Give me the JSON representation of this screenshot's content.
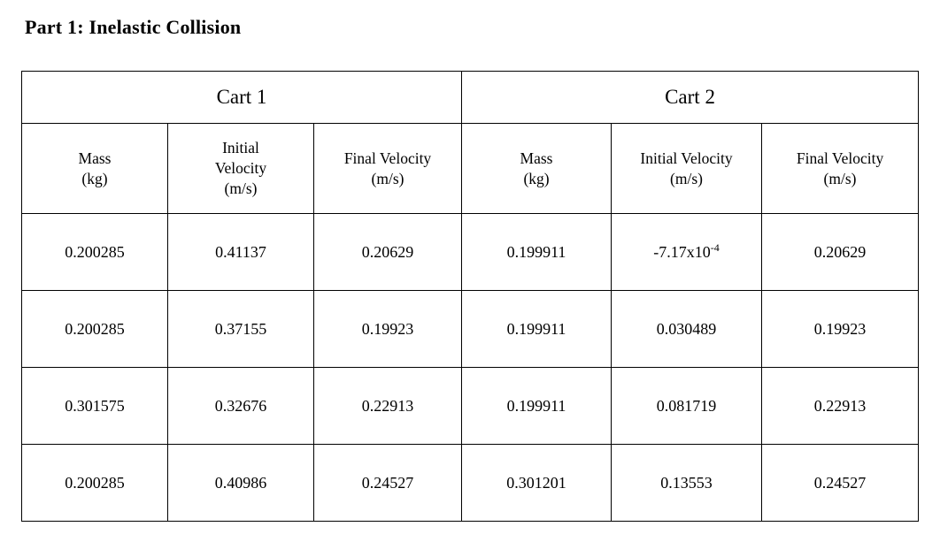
{
  "page": {
    "title": "Part 1: Inelastic Collision"
  },
  "table": {
    "groups": [
      {
        "label": "Cart 1"
      },
      {
        "label": "Cart 2"
      }
    ],
    "columns": [
      {
        "group": "Cart 1",
        "lines": [
          "Mass",
          "(kg)"
        ]
      },
      {
        "group": "Cart 1",
        "lines": [
          "Initial",
          "Velocity",
          "(m/s)"
        ]
      },
      {
        "group": "Cart 1",
        "lines": [
          "Final Velocity",
          "(m/s)"
        ]
      },
      {
        "group": "Cart 2",
        "lines": [
          "Mass",
          "(kg)"
        ]
      },
      {
        "group": "Cart 2",
        "lines": [
          "Initial Velocity",
          "(m/s)"
        ]
      },
      {
        "group": "Cart 2",
        "lines": [
          "Final Velocity",
          "(m/s)"
        ]
      }
    ],
    "rows": [
      [
        "0.200285",
        "0.41137",
        "0.20629",
        "0.199911",
        {
          "text": "-7.17x10",
          "superscript": "-4"
        },
        "0.20629"
      ],
      [
        "0.200285",
        "0.37155",
        "0.19923",
        "0.199911",
        "0.030489",
        "0.19923"
      ],
      [
        "0.301575",
        "0.32676",
        "0.22913",
        "0.199911",
        "0.081719",
        "0.22913"
      ],
      [
        "0.200285",
        "0.40986",
        "0.24527",
        "0.301201",
        "0.13553",
        "0.24527"
      ]
    ]
  }
}
